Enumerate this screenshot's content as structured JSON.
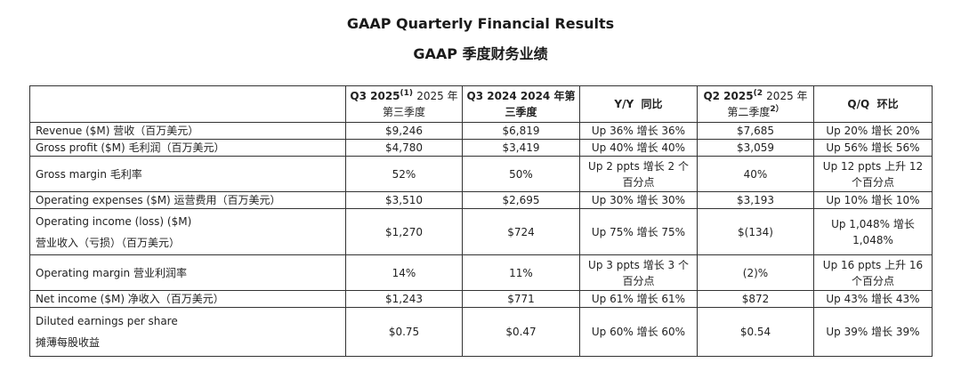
{
  "title_en": "GAAP Quarterly Financial Results",
  "title_cn": "GAAP 季度财务业绩",
  "headers": {
    "col1": {
      "main": "Q3 2025",
      "sup": "(1)",
      "text": "2025 年第三季度"
    },
    "col2": {
      "main": "Q3 2024",
      "text": "2024 年第三季度"
    },
    "col3": {
      "main": "Y/Y",
      "text": "同比"
    },
    "col4": {
      "main": "Q2 2025",
      "sup": "(2",
      "text": "2025 年第二季度",
      "sup2": "2）"
    },
    "col5": {
      "main": "Q/Q",
      "text": "环比"
    }
  },
  "rows": [
    {
      "label": "Revenue ($M)  营收（百万美元）",
      "q3_2025": "$9,246",
      "q3_2024": "$6,819",
      "yy": "Up 36%  增长 36%",
      "q2_2025": "$7,685",
      "qq": "Up 20%  增长 20%"
    },
    {
      "label": "Gross profit ($M)  毛利润（百万美元）",
      "q3_2025": "$4,780",
      "q3_2024": "$3,419",
      "yy": "Up 40%  增长 40%",
      "q2_2025": "$3,059",
      "qq": "Up 56%  增长 56%"
    },
    {
      "label": "Gross margin  毛利率",
      "q3_2025": "52%",
      "q3_2024": "50%",
      "yy": "Up 2 ppts  增长 2 个百分点",
      "q2_2025": "40%",
      "qq": "Up 12 ppts  上升 12 个百分点"
    },
    {
      "label": "Operating expenses ($M)  运营费用（百万美元）",
      "q3_2025": "$3,510",
      "q3_2024": "$2,695",
      "yy": "Up 30%  增长 30%",
      "q2_2025": "$3,193",
      "qq": "Up 10%  增长 10%"
    },
    {
      "label": "Operating income (loss) ($M)",
      "label2": "营业收入（亏损）（百万美元）",
      "q3_2025": "$1,270",
      "q3_2024": "$724",
      "yy": "Up 75%  增长 75%",
      "q2_2025": "$(134)",
      "qq": "Up 1,048%  增长 1,048%"
    },
    {
      "label": "Operating margin  营业利润率",
      "q3_2025": "14%",
      "q3_2024": "11%",
      "yy": "Up 3 ppts  增长 3 个百分点",
      "q2_2025": "(2)%",
      "qq": "Up 16 ppts  上升 16 个百分点"
    },
    {
      "label": "Net income ($M)  净收入（百万美元）",
      "q3_2025": "$1,243",
      "q3_2024": "$771",
      "yy": "Up 61%  增长 61%",
      "q2_2025": "$872",
      "qq": "Up 43%  增长 43%"
    },
    {
      "label": "Diluted earnings per share",
      "label2": "摊薄每股收益",
      "q3_2025": "$0.75",
      "q3_2024": "$0.47",
      "yy": "Up 60%  增长 60%",
      "q2_2025": "$0.54",
      "qq": "Up 39%  增长 39%"
    }
  ]
}
